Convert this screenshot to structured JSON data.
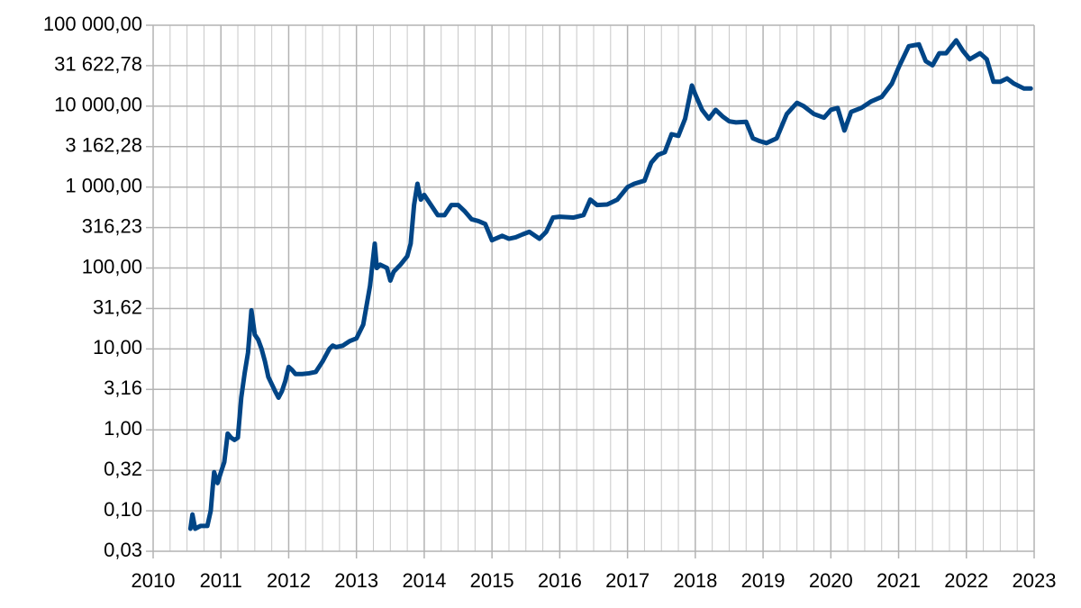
{
  "chart_data": {
    "type": "line",
    "log_y": true,
    "grid": true,
    "xlim": [
      2010,
      2023
    ],
    "xticks": [
      2010,
      2011,
      2012,
      2013,
      2014,
      2015,
      2016,
      2017,
      2018,
      2019,
      2020,
      2021,
      2022,
      2023
    ],
    "ylim": [
      0.0316227766,
      100000
    ],
    "yticks": [
      {
        "value": 0.0316227766,
        "label": "0,03"
      },
      {
        "value": 0.1,
        "label": "0,10"
      },
      {
        "value": 0.316227766,
        "label": "0,32"
      },
      {
        "value": 1,
        "label": "1,00"
      },
      {
        "value": 3.16227766,
        "label": "3,16"
      },
      {
        "value": 10,
        "label": "10,00"
      },
      {
        "value": 31.6227766,
        "label": "31,62"
      },
      {
        "value": 100,
        "label": "100,00"
      },
      {
        "value": 316.227766,
        "label": "316,23"
      },
      {
        "value": 1000,
        "label": "1 000,00"
      },
      {
        "value": 3162.27766,
        "label": "3 162,28"
      },
      {
        "value": 10000,
        "label": "10 000,00"
      },
      {
        "value": 31622.7766,
        "label": "31 622,78"
      },
      {
        "value": 100000,
        "label": "100 000,00"
      }
    ],
    "x": [
      2010.55,
      2010.58,
      2010.62,
      2010.7,
      2010.8,
      2010.85,
      2010.88,
      2010.9,
      2010.95,
      2011.0,
      2011.05,
      2011.1,
      2011.15,
      2011.2,
      2011.25,
      2011.3,
      2011.35,
      2011.4,
      2011.45,
      2011.5,
      2011.55,
      2011.6,
      2011.65,
      2011.7,
      2011.8,
      2011.85,
      2011.9,
      2011.95,
      2012.0,
      2012.05,
      2012.1,
      2012.2,
      2012.3,
      2012.4,
      2012.5,
      2012.6,
      2012.65,
      2012.7,
      2012.8,
      2012.9,
      2013.0,
      2013.1,
      2013.2,
      2013.27,
      2013.3,
      2013.35,
      2013.45,
      2013.5,
      2013.55,
      2013.65,
      2013.75,
      2013.8,
      2013.85,
      2013.9,
      2013.95,
      2014.0,
      2014.1,
      2014.2,
      2014.3,
      2014.4,
      2014.5,
      2014.6,
      2014.7,
      2014.8,
      2014.9,
      2015.0,
      2015.05,
      2015.15,
      2015.25,
      2015.35,
      2015.45,
      2015.55,
      2015.7,
      2015.8,
      2015.9,
      2016.0,
      2016.2,
      2016.35,
      2016.45,
      2016.55,
      2016.7,
      2016.85,
      2017.0,
      2017.1,
      2017.25,
      2017.35,
      2017.45,
      2017.55,
      2017.65,
      2017.75,
      2017.85,
      2017.95,
      2018.0,
      2018.1,
      2018.2,
      2018.3,
      2018.4,
      2018.5,
      2018.6,
      2018.75,
      2018.85,
      2018.95,
      2019.05,
      2019.2,
      2019.35,
      2019.5,
      2019.6,
      2019.75,
      2019.9,
      2020.0,
      2020.1,
      2020.2,
      2020.3,
      2020.45,
      2020.6,
      2020.75,
      2020.9,
      2021.0,
      2021.15,
      2021.3,
      2021.4,
      2021.5,
      2021.6,
      2021.7,
      2021.85,
      2021.95,
      2022.05,
      2022.2,
      2022.3,
      2022.4,
      2022.5,
      2022.6,
      2022.7,
      2022.85,
      2022.95
    ],
    "series": [
      {
        "color": "#004586",
        "values": [
          0.06,
          0.09,
          0.06,
          0.065,
          0.065,
          0.1,
          0.2,
          0.3,
          0.22,
          0.3,
          0.4,
          0.9,
          0.8,
          0.75,
          0.8,
          2.5,
          5,
          9,
          30,
          15,
          13,
          10,
          7,
          4.5,
          3,
          2.5,
          3,
          4,
          6,
          5.5,
          4.9,
          4.9,
          5,
          5.2,
          7,
          10,
          11,
          10.5,
          11,
          12.5,
          13.5,
          20,
          60,
          200,
          100,
          110,
          100,
          70,
          90,
          110,
          140,
          200,
          600,
          1100,
          700,
          800,
          600,
          450,
          450,
          600,
          600,
          500,
          400,
          380,
          350,
          220,
          230,
          250,
          230,
          240,
          260,
          280,
          230,
          280,
          420,
          430,
          420,
          450,
          700,
          600,
          610,
          700,
          1000,
          1100,
          1200,
          2000,
          2500,
          2700,
          4500,
          4300,
          7000,
          18000,
          14000,
          9000,
          7000,
          9000,
          7500,
          6500,
          6300,
          6400,
          4000,
          3700,
          3500,
          4000,
          8000,
          11000,
          10000,
          8000,
          7200,
          9000,
          9500,
          5000,
          8500,
          9500,
          11500,
          13000,
          19000,
          30000,
          55000,
          58000,
          36000,
          32000,
          45000,
          45000,
          65000,
          48000,
          38000,
          45000,
          38000,
          20000,
          20000,
          22000,
          19000,
          16500,
          16500
        ]
      }
    ]
  }
}
